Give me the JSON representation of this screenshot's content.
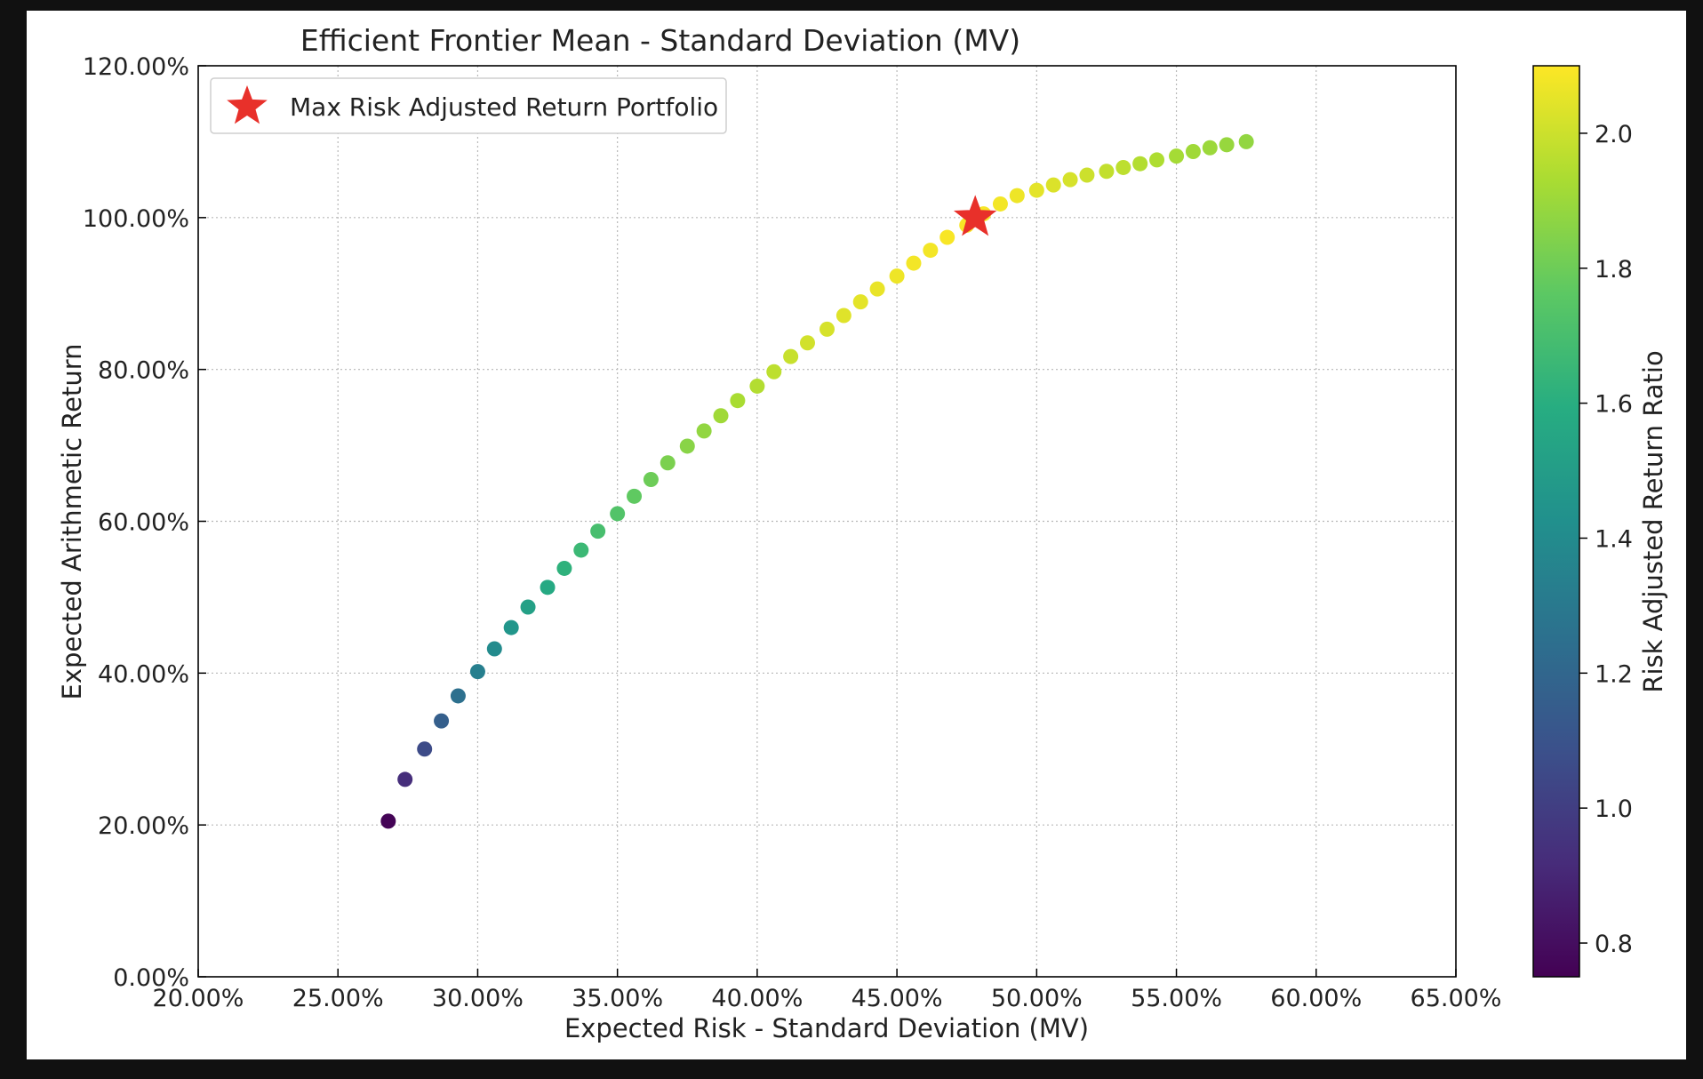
{
  "chart_data": {
    "type": "scatter",
    "title": "Efficient Frontier Mean - Standard Deviation (MV)",
    "xlabel": "Expected Risk - Standard Deviation (MV)",
    "ylabel": "Expected Arithmetic Return",
    "xlim": [
      20,
      65
    ],
    "ylim": [
      0,
      120
    ],
    "x_ticks": [
      "20.00%",
      "25.00%",
      "30.00%",
      "35.00%",
      "40.00%",
      "45.00%",
      "50.00%",
      "55.00%",
      "60.00%",
      "65.00%"
    ],
    "y_ticks": [
      "0.00%",
      "20.00%",
      "40.00%",
      "60.00%",
      "80.00%",
      "100.00%",
      "120.00%"
    ],
    "x_tick_values": [
      20,
      25,
      30,
      35,
      40,
      45,
      50,
      55,
      60,
      65
    ],
    "y_tick_values": [
      0,
      20,
      40,
      60,
      80,
      100,
      120
    ],
    "grid": true,
    "legend_position": "top-left",
    "series": [
      {
        "name": "",
        "color_by": "Risk Adjusted Return Ratio",
        "x": [
          26.8,
          27.4,
          28.1,
          28.7,
          29.3,
          30.0,
          30.6,
          31.2,
          31.8,
          32.5,
          33.1,
          33.7,
          34.3,
          35.0,
          35.6,
          36.2,
          36.8,
          37.5,
          38.1,
          38.7,
          39.3,
          40.0,
          40.6,
          41.2,
          41.8,
          42.5,
          43.1,
          43.7,
          44.3,
          45.0,
          45.6,
          46.2,
          46.8,
          47.5,
          48.1,
          48.7,
          49.3,
          50.0,
          50.6,
          51.2,
          51.8,
          52.5,
          53.1,
          53.7,
          54.3,
          55.0,
          55.6,
          56.2,
          56.8,
          57.5
        ],
        "y": [
          20.5,
          26.0,
          30.0,
          33.7,
          37.0,
          40.2,
          43.2,
          46.0,
          48.7,
          51.3,
          53.8,
          56.2,
          58.7,
          61.0,
          63.3,
          65.5,
          67.7,
          69.9,
          71.9,
          73.9,
          75.9,
          77.8,
          79.7,
          81.7,
          83.5,
          85.3,
          87.1,
          88.9,
          90.6,
          92.3,
          94.0,
          95.7,
          97.4,
          99.0,
          100.5,
          101.8,
          102.9,
          103.6,
          104.3,
          105.0,
          105.6,
          106.1,
          106.6,
          107.1,
          107.6,
          108.1,
          108.7,
          109.2,
          109.6,
          110.0
        ],
        "color_values": [
          0.76,
          0.93,
          1.06,
          1.16,
          1.25,
          1.33,
          1.4,
          1.46,
          1.52,
          1.57,
          1.62,
          1.66,
          1.7,
          1.73,
          1.77,
          1.8,
          1.83,
          1.86,
          1.88,
          1.91,
          1.93,
          1.95,
          1.97,
          1.99,
          2.01,
          2.02,
          2.04,
          2.05,
          2.06,
          2.07,
          2.08,
          2.08,
          2.09,
          2.09,
          2.085,
          2.08,
          2.07,
          2.05,
          2.03,
          2.02,
          2.0,
          1.98,
          1.97,
          1.95,
          1.94,
          1.92,
          1.91,
          1.9,
          1.89,
          1.88
        ]
      }
    ],
    "highlight": {
      "legend_label": "Max Risk Adjusted Return Portfolio",
      "x": 47.8,
      "y": 100.0,
      "marker": "star",
      "color": "#e8302a"
    },
    "colorbar": {
      "label": "Risk Adjusted Return Ratio",
      "min": 0.75,
      "max": 2.1,
      "ticks": [
        "0.8",
        "1.0",
        "1.2",
        "1.4",
        "1.6",
        "1.8",
        "2.0"
      ],
      "tick_values": [
        0.8,
        1.0,
        1.2,
        1.4,
        1.6,
        1.8,
        2.0
      ],
      "colormap": "viridis"
    }
  }
}
